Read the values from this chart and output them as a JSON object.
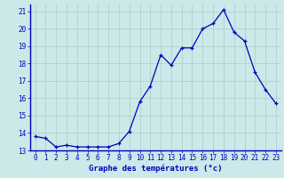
{
  "hours": [
    0,
    1,
    2,
    3,
    4,
    5,
    6,
    7,
    8,
    9,
    10,
    11,
    12,
    13,
    14,
    15,
    16,
    17,
    18,
    19,
    20,
    21,
    22,
    23
  ],
  "temps": [
    13.8,
    13.7,
    13.2,
    13.3,
    13.2,
    13.2,
    13.2,
    13.2,
    13.4,
    14.1,
    15.8,
    16.7,
    18.5,
    17.9,
    18.9,
    18.9,
    20.0,
    20.3,
    21.1,
    19.8,
    19.3,
    17.5,
    16.5,
    15.7
  ],
  "xlabel": "Graphe des températures (°c)",
  "xlim_min": -0.5,
  "xlim_max": 23.5,
  "ylim_min": 13,
  "ylim_max": 21.4,
  "yticks": [
    13,
    14,
    15,
    16,
    17,
    18,
    19,
    20,
    21
  ],
  "xticks": [
    0,
    1,
    2,
    3,
    4,
    5,
    6,
    7,
    8,
    9,
    10,
    11,
    12,
    13,
    14,
    15,
    16,
    17,
    18,
    19,
    20,
    21,
    22,
    23
  ],
  "line_color": "#0000bb",
  "marker_color": "#0000bb",
  "bg_color": "#cce8e8",
  "grid_color": "#aacccc",
  "spine_color": "#0000bb",
  "label_color": "#0000bb",
  "tick_fontsize": 5.5,
  "xlabel_fontsize": 6.5
}
